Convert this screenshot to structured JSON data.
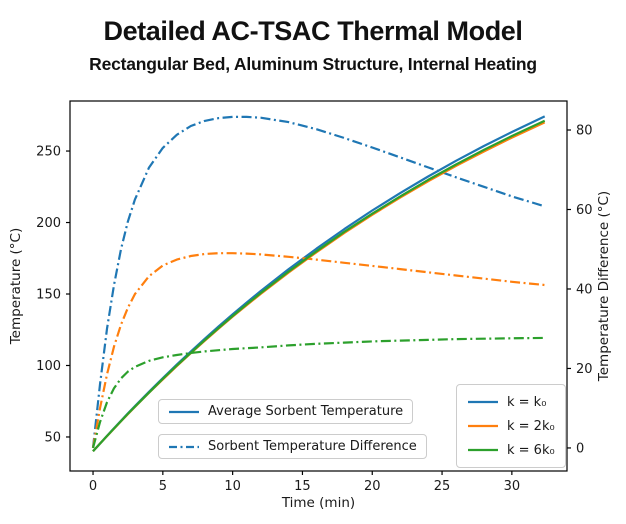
{
  "header": {
    "title": "Detailed AC-TSAC Thermal Model",
    "subtitle": "Rectangular Bed, Aluminum Structure, Internal Heating"
  },
  "colors": {
    "k1": "#1f77b4",
    "k2": "#ff7f0e",
    "k6": "#2ca02c",
    "spine": "#000000",
    "tick_text": "#1a1a1a"
  },
  "chart_data": {
    "type": "line",
    "title": "Detailed AC-TSAC Thermal Model",
    "subtitle": "Rectangular Bed, Aluminum Structure, Internal Heating",
    "grid": false,
    "x_axis": {
      "label": "Time (min)",
      "ticks": [
        0,
        5,
        10,
        15,
        20,
        25,
        30
      ],
      "range": [
        -1.65,
        33.95
      ]
    },
    "y_left_axis": {
      "label": "Temperature (°C)",
      "ticks": [
        50,
        100,
        150,
        200,
        250
      ],
      "range": [
        26.2,
        285.0
      ]
    },
    "y_right_axis": {
      "label": "Temperature Difference (°C)",
      "ticks": [
        0,
        20,
        40,
        60,
        80
      ],
      "range": [
        -5.8,
        87.3
      ]
    },
    "time_min": [
      0,
      0.5,
      1,
      1.5,
      2,
      2.5,
      3,
      4,
      5,
      6,
      7,
      8,
      9,
      10,
      11,
      12,
      14,
      16,
      18,
      20,
      22,
      24,
      26,
      28,
      30,
      32.35
    ],
    "series": [
      {
        "id": "avg-temp-k1",
        "label": "Average Sorbent Temperature (k = k₀)",
        "axis": "left",
        "linestyle": "solid",
        "color": "#1f77b4",
        "values": [
          40,
          45.4,
          50.8,
          56.1,
          61.3,
          66.5,
          71.6,
          81.5,
          91.2,
          100.6,
          109.8,
          118.7,
          127.4,
          135.8,
          144.0,
          152.0,
          167.3,
          181.7,
          195.4,
          208.4,
          220.6,
          232.2,
          243.2,
          253.5,
          263.3,
          274.2
        ]
      },
      {
        "id": "diff-temp-k1",
        "label": "Sorbent Temperature Difference (k = k₀)",
        "axis": "right",
        "linestyle": "dashdot",
        "color": "#1f77b4",
        "values": [
          0,
          16,
          30,
          41,
          50,
          57,
          62.5,
          70.5,
          75.5,
          78.8,
          81,
          82.3,
          83,
          83.3,
          83.3,
          83.1,
          82,
          80.2,
          78,
          75.6,
          73.1,
          70.6,
          68.1,
          65.7,
          63.3,
          60.8
        ]
      },
      {
        "id": "avg-temp-k2",
        "label": "Average Sorbent Temperature (k = 2k₀)",
        "axis": "left",
        "linestyle": "solid",
        "color": "#ff7f0e",
        "values": [
          40,
          45.4,
          50.6,
          55.8,
          61.0,
          66.0,
          71.0,
          80.8,
          90.3,
          99.6,
          108.6,
          117.3,
          125.8,
          134.1,
          142.1,
          150.0,
          165.0,
          179.2,
          192.7,
          205.4,
          217.4,
          228.8,
          239.6,
          249.7,
          259.4,
          270.0
        ]
      },
      {
        "id": "diff-temp-k2",
        "label": "Sorbent Temperature Difference (k = 2k₀)",
        "axis": "right",
        "linestyle": "dashdot",
        "color": "#ff7f0e",
        "values": [
          0,
          10,
          18.5,
          25.5,
          31,
          35.3,
          38.7,
          43.2,
          45.9,
          47.4,
          48.3,
          48.8,
          49.0,
          49.0,
          48.9,
          48.7,
          48.1,
          47.4,
          46.6,
          45.8,
          45.0,
          44.2,
          43.4,
          42.6,
          41.8,
          41.0
        ]
      },
      {
        "id": "avg-temp-k6",
        "label": "Average Sorbent Temperature (k = 6k₀)",
        "axis": "left",
        "linestyle": "solid",
        "color": "#2ca02c",
        "values": [
          40,
          45.4,
          50.7,
          55.9,
          61.1,
          66.2,
          71.2,
          81.0,
          90.6,
          99.9,
          108.9,
          117.7,
          126.3,
          134.6,
          142.7,
          150.6,
          165.7,
          179.9,
          193.5,
          206.2,
          218.3,
          229.8,
          240.6,
          250.8,
          260.5,
          271.2
        ]
      },
      {
        "id": "diff-temp-k6",
        "label": "Sorbent Temperature Difference (k = 6k₀)",
        "axis": "right",
        "linestyle": "dashdot",
        "color": "#2ca02c",
        "values": [
          0,
          6.5,
          11.5,
          15,
          17.5,
          19.2,
          20.4,
          21.9,
          22.8,
          23.4,
          23.9,
          24.3,
          24.6,
          24.9,
          25.1,
          25.3,
          25.8,
          26.2,
          26.5,
          26.8,
          27.0,
          27.2,
          27.4,
          27.5,
          27.6,
          27.7
        ]
      }
    ],
    "legend_linestyle": [
      {
        "label": "Average Sorbent Temperature",
        "linestyle": "solid",
        "color": "#1f77b4"
      },
      {
        "label": "Sorbent Temperature Difference",
        "linestyle": "dashdot",
        "color": "#1f77b4"
      }
    ],
    "legend_k": [
      {
        "label": "k = k₀",
        "color": "#1f77b4"
      },
      {
        "label": "k = 2k₀",
        "color": "#ff7f0e"
      },
      {
        "label": "k = 6k₀",
        "color": "#2ca02c"
      }
    ]
  }
}
